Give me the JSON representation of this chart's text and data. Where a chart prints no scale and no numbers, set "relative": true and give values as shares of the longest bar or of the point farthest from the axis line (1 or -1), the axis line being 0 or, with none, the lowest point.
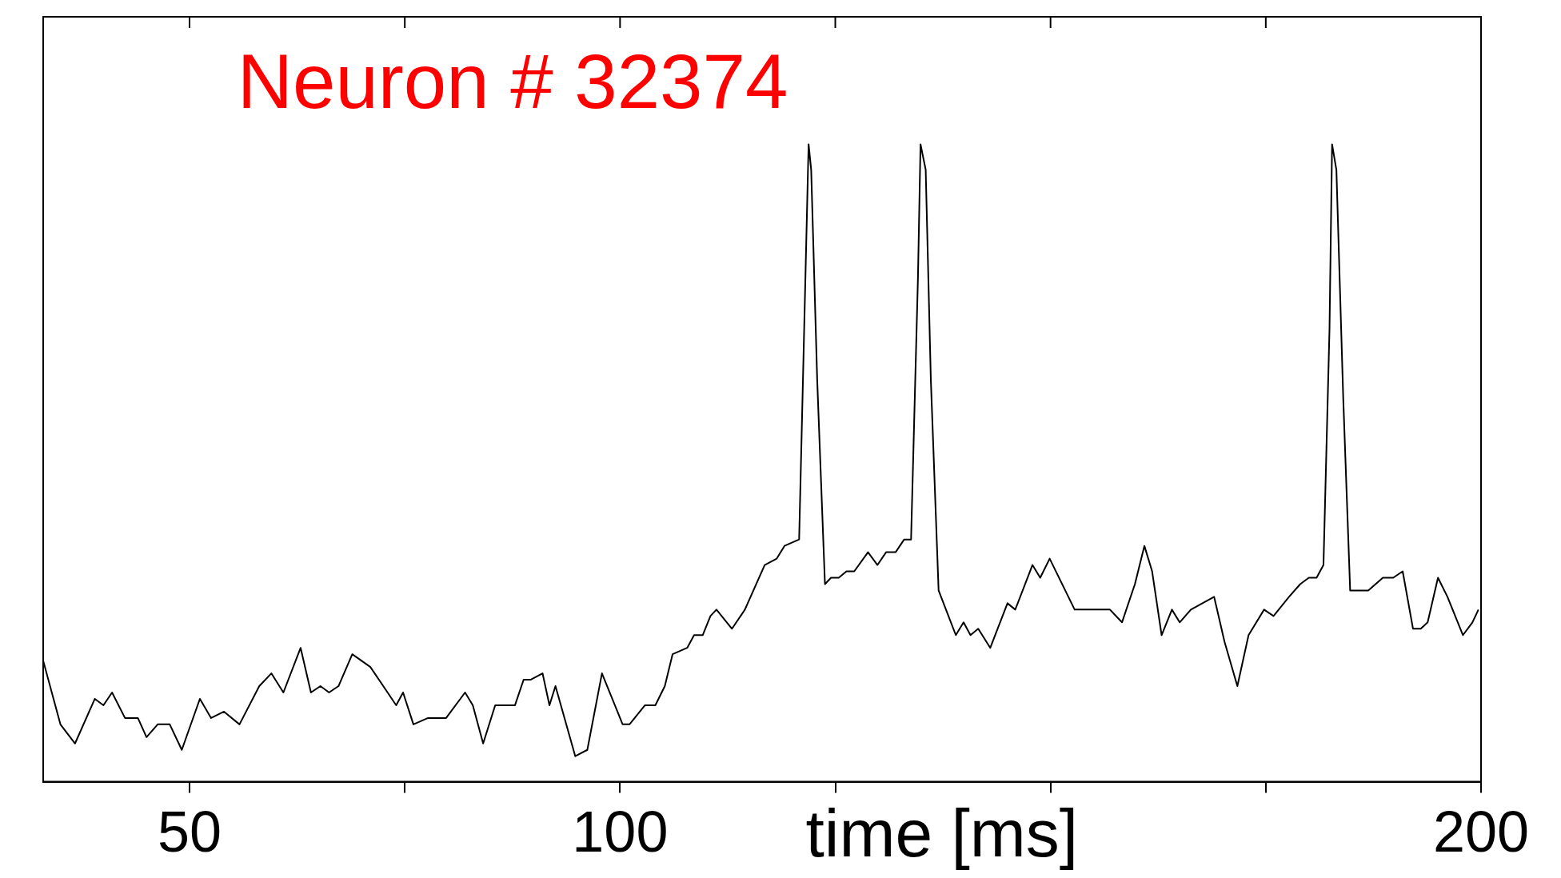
{
  "chart_data": {
    "type": "line",
    "title": "Neuron # 32374",
    "xlabel": "time [ms]",
    "relative": true,
    "grid": false,
    "legend": false,
    "marker": "none",
    "line_style": "solid",
    "xlim": [
      33,
      200
    ],
    "xticks": [
      50,
      {
        "value": 75,
        "label": null
      },
      100,
      {
        "value": 125,
        "label": null
      },
      {
        "value": 150,
        "label": null
      },
      {
        "value": 175,
        "label": null
      },
      200
    ],
    "series": [
      {
        "color": "#000000",
        "x": [
          33.0,
          35.0,
          36.7,
          39.0,
          40.0,
          41.0,
          42.5,
          44.0,
          45.0,
          46.3,
          47.7,
          49.1,
          51.2,
          52.5,
          54.0,
          55.8,
          58.1,
          59.5,
          60.9,
          62.9,
          64.1,
          65.2,
          66.2,
          67.3,
          68.9,
          71.0,
          72.5,
          74.0,
          74.8,
          76.0,
          77.7,
          79.8,
          82.0,
          82.9,
          84.1,
          85.5,
          86.7,
          87.8,
          88.8,
          89.6,
          91.0,
          91.8,
          92.5,
          94.8,
          96.2,
          97.9,
          100.3,
          101.1,
          102.9,
          104.1,
          105.2,
          106.1,
          107.8,
          108.6,
          109.6,
          110.5,
          111.2,
          113.0,
          114.5,
          116.8,
          118.2,
          119.1,
          120.8,
          121.9,
          122.2,
          122.9,
          123.8,
          124.5,
          125.4,
          126.3,
          127.2,
          128.8,
          129.9,
          130.9,
          132.0,
          133.0,
          133.8,
          134.6,
          134.9,
          135.5,
          136.1,
          137.0,
          139.0,
          139.9,
          140.7,
          141.6,
          143.0,
          145.0,
          145.9,
          147.9,
          148.8,
          149.9,
          152.8,
          154.0,
          155.1,
          156.9,
          158.3,
          159.8,
          160.9,
          161.8,
          162.9,
          164.1,
          165.0,
          166.3,
          169.0,
          170.2,
          171.7,
          173.0,
          174.8,
          175.9,
          177.7,
          179.0,
          180.0,
          180.9,
          181.7,
          182.4,
          182.7,
          183.2,
          184.0,
          184.8,
          185.7,
          186.9,
          188.6,
          189.8,
          190.9,
          192.1,
          193.0,
          193.8,
          195.0,
          196.1,
          197.9,
          199.0,
          199.7
        ],
        "values": [
          0.19,
          0.09,
          0.06,
          0.13,
          0.12,
          0.14,
          0.1,
          0.1,
          0.07,
          0.09,
          0.09,
          0.05,
          0.13,
          0.1,
          0.11,
          0.09,
          0.15,
          0.17,
          0.14,
          0.21,
          0.14,
          0.15,
          0.14,
          0.15,
          0.2,
          0.18,
          0.15,
          0.12,
          0.14,
          0.09,
          0.1,
          0.1,
          0.14,
          0.12,
          0.06,
          0.12,
          0.12,
          0.12,
          0.16,
          0.16,
          0.17,
          0.12,
          0.15,
          0.04,
          0.05,
          0.17,
          0.09,
          0.09,
          0.12,
          0.12,
          0.15,
          0.2,
          0.21,
          0.23,
          0.23,
          0.26,
          0.27,
          0.24,
          0.27,
          0.34,
          0.35,
          0.37,
          0.38,
          1.0,
          0.96,
          0.63,
          0.31,
          0.32,
          0.32,
          0.33,
          0.33,
          0.36,
          0.34,
          0.36,
          0.36,
          0.38,
          0.38,
          0.79,
          1.0,
          0.96,
          0.63,
          0.3,
          0.23,
          0.25,
          0.23,
          0.24,
          0.21,
          0.28,
          0.27,
          0.34,
          0.32,
          0.35,
          0.27,
          0.27,
          0.27,
          0.27,
          0.25,
          0.31,
          0.37,
          0.33,
          0.23,
          0.27,
          0.25,
          0.27,
          0.29,
          0.22,
          0.15,
          0.23,
          0.27,
          0.26,
          0.29,
          0.31,
          0.32,
          0.32,
          0.34,
          0.71,
          1.0,
          0.96,
          0.6,
          0.3,
          0.3,
          0.3,
          0.32,
          0.32,
          0.33,
          0.24,
          0.24,
          0.25,
          0.32,
          0.29,
          0.23,
          0.25,
          0.27
        ]
      }
    ]
  }
}
